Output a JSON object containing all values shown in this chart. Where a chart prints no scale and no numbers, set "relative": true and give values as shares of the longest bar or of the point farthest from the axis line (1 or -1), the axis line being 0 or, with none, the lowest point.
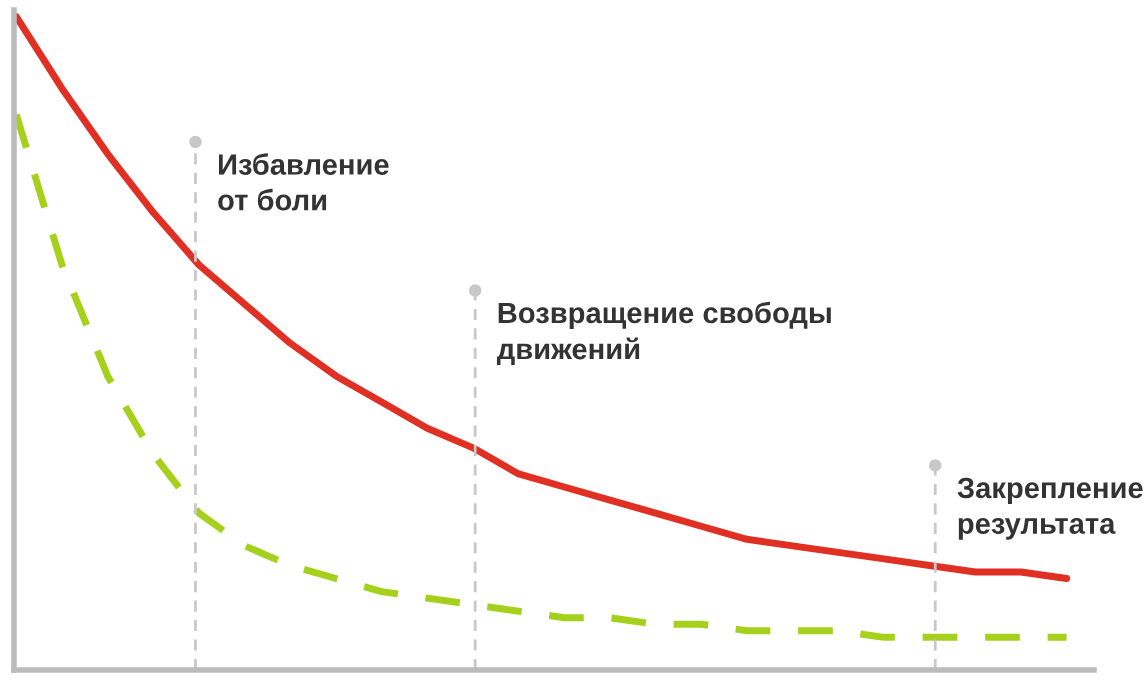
{
  "chart_data": {
    "type": "line",
    "relative": true,
    "categories": [
      null,
      null,
      null,
      null,
      null,
      null,
      null,
      null,
      null,
      null,
      null,
      null,
      null,
      null,
      null,
      null,
      null,
      null,
      null,
      null,
      null,
      null,
      null,
      null
    ],
    "series": [
      {
        "color": "#e03024",
        "line_style": "solid",
        "values": [
          1.0,
          0.89,
          0.79,
          0.7,
          0.62,
          0.56,
          0.5,
          0.45,
          0.41,
          0.37,
          0.34,
          0.3,
          0.28,
          0.26,
          0.24,
          0.22,
          0.2,
          0.19,
          0.18,
          0.17,
          0.16,
          0.15,
          0.15,
          0.14
        ]
      },
      {
        "color": "#a5d11c",
        "line_style": "dashed",
        "values": [
          0.85,
          0.62,
          0.45,
          0.33,
          0.24,
          0.19,
          0.16,
          0.14,
          0.12,
          0.11,
          0.1,
          0.09,
          0.08,
          0.08,
          0.07,
          0.07,
          0.06,
          0.06,
          0.06,
          0.05,
          0.05,
          0.05,
          0.05,
          0.05
        ]
      }
    ],
    "annotations": [
      "Избавление\nот боли",
      "Возвращение свободы\nдвижений",
      "Закрепление\nрезультата"
    ],
    "grid": false,
    "legend": false
  }
}
